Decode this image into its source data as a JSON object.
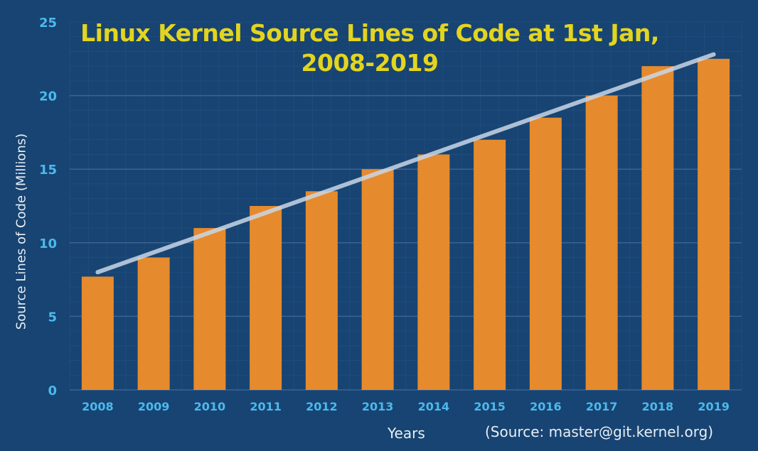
{
  "chart_data": {
    "type": "bar",
    "title": "Linux Kernel Source Lines of Code at 1st Jan, 2008-2019",
    "title_lines": [
      "Linux Kernel Source Lines of Code at 1st Jan,",
      "2008-2019"
    ],
    "xlabel": "Years",
    "ylabel": "Source Lines of Code (Millions)",
    "source_note": "(Source: master@git.kernel.org)",
    "categories": [
      "2008",
      "2009",
      "2010",
      "2011",
      "2012",
      "2013",
      "2014",
      "2015",
      "2016",
      "2017",
      "2018",
      "2019"
    ],
    "values": [
      7.7,
      9.0,
      11.0,
      12.5,
      13.5,
      15.0,
      16.0,
      17.0,
      18.5,
      20.0,
      22.0,
      22.5
    ],
    "trendline": {
      "start": {
        "x": "2008",
        "y": 8.0
      },
      "end": {
        "x": "2019",
        "y": 22.8
      }
    },
    "ylim": [
      0,
      25
    ],
    "yticks": [
      "0",
      "5",
      "10",
      "15",
      "20",
      "25"
    ],
    "grid": true,
    "legend": "none",
    "colors": {
      "background": "#174472",
      "bar": "#e68a2e",
      "trendline": "#c9d6e6",
      "title": "#e3d41f",
      "ticks": "#4cb9ec",
      "grid": "#3b6391"
    }
  }
}
